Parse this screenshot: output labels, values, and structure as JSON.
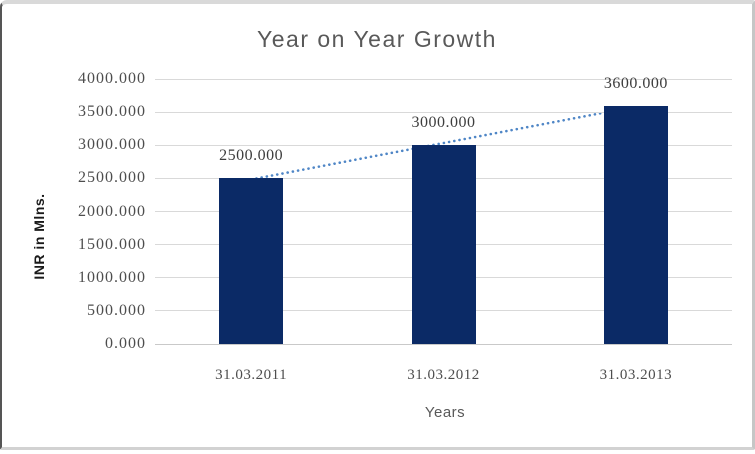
{
  "chart_data": {
    "type": "bar",
    "title": "Year on Year Growth",
    "xlabel": "Years",
    "ylabel": "INR in Mlns.",
    "categories": [
      "31.03.2011",
      "31.03.2012",
      "31.03.2013"
    ],
    "values": [
      2500,
      3000,
      3600
    ],
    "data_labels": [
      "2500.000",
      "3000.000",
      "3600.000"
    ],
    "yticks": [
      0,
      500,
      1000,
      1500,
      2000,
      2500,
      3000,
      3500,
      4000
    ],
    "ytick_labels": [
      "0.000",
      "500.000",
      "1000.000",
      "1500.000",
      "2000.000",
      "2500.000",
      "3000.000",
      "3500.000",
      "4000.000"
    ],
    "ylim": [
      0,
      4000
    ],
    "grid": true,
    "legend": "none",
    "trendline": {
      "type": "linear",
      "style": "dotted"
    },
    "colors": {
      "bar": "#0b2a66",
      "trendline": "#4f86c6",
      "gridline": "#d9d9d9",
      "axis_line": "#c9c9c9",
      "title": "#595959",
      "tick_label": "#4d4d4d",
      "data_label": "#3d3d3d",
      "axis_title": "#595959",
      "y_axis_title": "#1a1a1a"
    }
  }
}
